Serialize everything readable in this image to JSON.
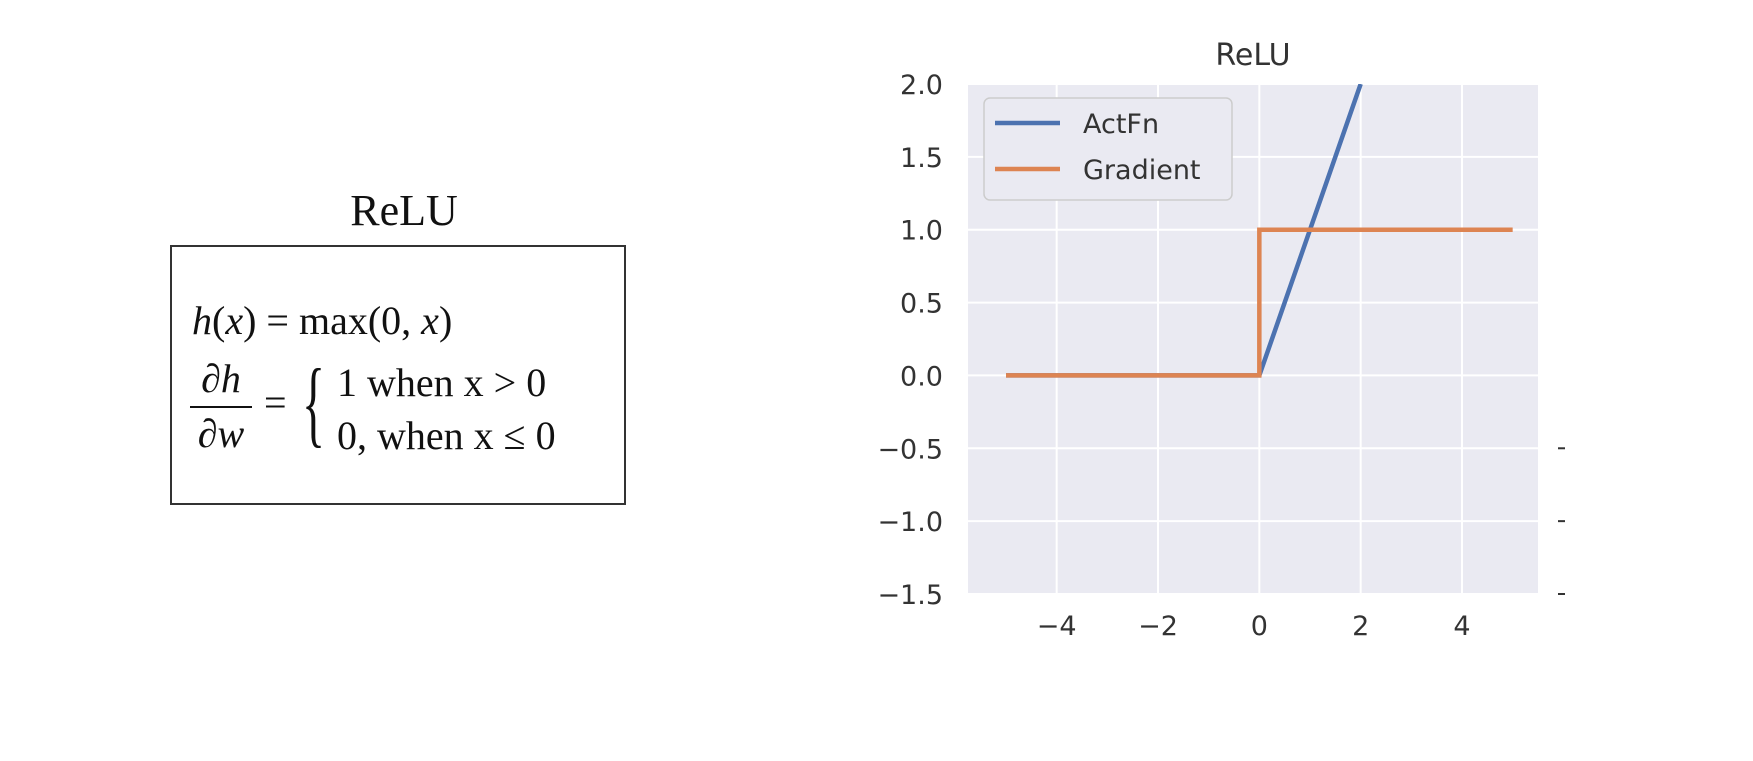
{
  "formula": {
    "title": "ReLU",
    "line1": "h(x) = max(0, x)",
    "numerator": "∂h",
    "denominator": "∂w",
    "equals": "=",
    "case1": "1 when x > 0",
    "case2": "0, when x ≤ 0"
  },
  "chart_data": {
    "type": "line",
    "title": "ReLU",
    "xlabel": "",
    "ylabel": "",
    "xlim": [
      -5.75,
      5.5
    ],
    "ylim": [
      -1.5,
      2.0
    ],
    "xticks": [
      -4,
      -2,
      0,
      2,
      4
    ],
    "xtick_labels": [
      "−4",
      "−2",
      "0",
      "2",
      "4"
    ],
    "yticks": [
      2.0,
      1.5,
      1.0,
      0.5,
      0.0,
      -0.5,
      -1.0,
      -1.5
    ],
    "ytick_labels": [
      "2.0",
      "1.5",
      "1.0",
      "0.5",
      "0.0",
      "−0.5",
      "−1.0",
      "−1.5"
    ],
    "grid": true,
    "legend_position": "top-left",
    "background": "#eaeaf2",
    "series": [
      {
        "name": "ActFn",
        "color": "#4c72b0",
        "x": [
          -5,
          0,
          2
        ],
        "y": [
          0,
          0,
          2
        ]
      },
      {
        "name": "Gradient",
        "color": "#dd8452",
        "x": [
          -5,
          0,
          0,
          5
        ],
        "y": [
          0,
          0,
          1,
          1
        ]
      }
    ]
  }
}
